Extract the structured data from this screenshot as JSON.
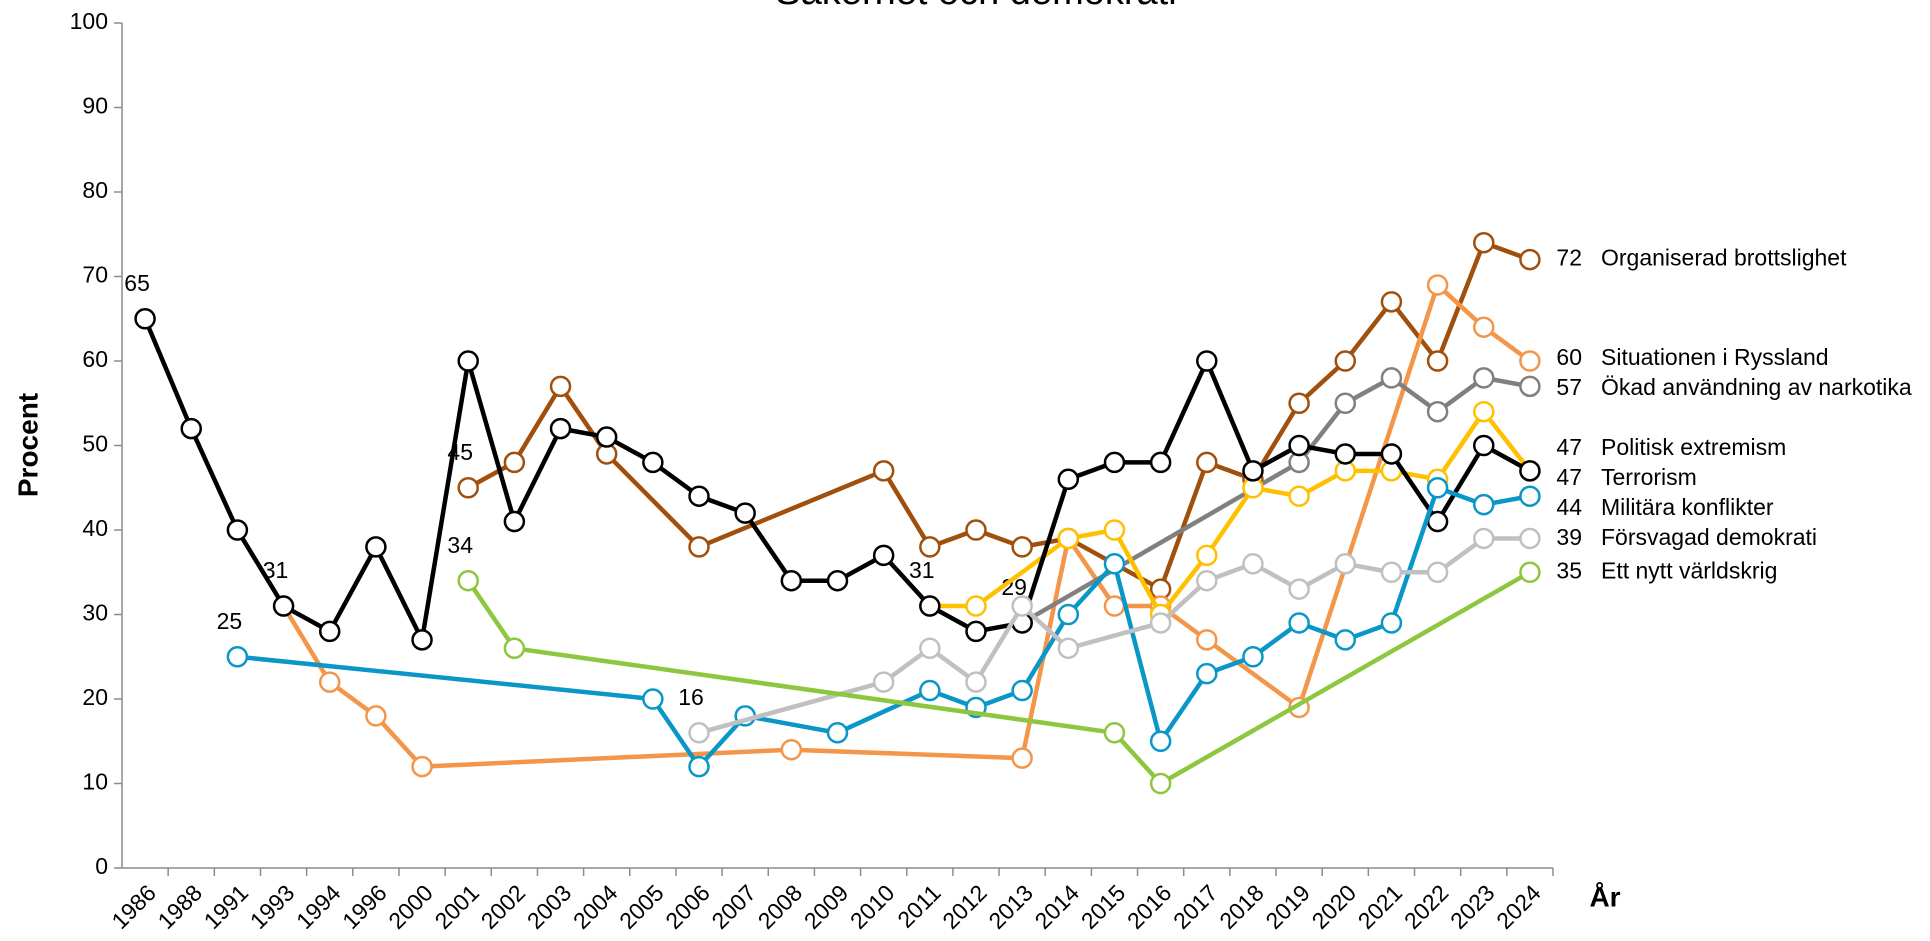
{
  "chart_data": {
    "type": "line",
    "title": "Säkerhet och demokrati",
    "x_label": "År",
    "y_label": "Procent",
    "categories": [
      "1986",
      "1988",
      "1991",
      "1993",
      "1994",
      "1996",
      "2000",
      "2001",
      "2002",
      "2003",
      "2004",
      "2005",
      "2006",
      "2007",
      "2008",
      "2009",
      "2010",
      "2011",
      "2012",
      "2013",
      "2014",
      "2015",
      "2016",
      "2017",
      "2018",
      "2019",
      "2020",
      "2021",
      "2022",
      "2023",
      "2024"
    ],
    "ylim": [
      0,
      100
    ],
    "yticks": [
      0,
      10,
      20,
      30,
      40,
      50,
      60,
      70,
      80,
      90,
      100
    ],
    "grid": false,
    "span_gaps": true,
    "data_labels": "first_and_last",
    "series": [
      {
        "name": "Organiserad brottslighet",
        "color": "#a0500c",
        "values": [
          null,
          null,
          null,
          null,
          null,
          null,
          null,
          45,
          48,
          57,
          49,
          null,
          38,
          null,
          null,
          null,
          47,
          38,
          40,
          38,
          39,
          null,
          33,
          48,
          46,
          55,
          60,
          67,
          60,
          74,
          72
        ]
      },
      {
        "name": "Situationen i Ryssland",
        "color": "#f4964a",
        "values": [
          null,
          null,
          null,
          31,
          22,
          18,
          12,
          null,
          null,
          null,
          null,
          null,
          null,
          null,
          14,
          null,
          null,
          null,
          null,
          13,
          39,
          31,
          31,
          27,
          null,
          19,
          null,
          null,
          69,
          64,
          60
        ]
      },
      {
        "name": "Ökad användning av narkotika",
        "color": "#808080",
        "values": [
          null,
          null,
          null,
          null,
          null,
          null,
          null,
          null,
          null,
          null,
          null,
          null,
          null,
          null,
          null,
          null,
          null,
          null,
          null,
          29,
          null,
          null,
          null,
          null,
          null,
          48,
          55,
          58,
          54,
          58,
          57
        ]
      },
      {
        "name": "Politisk extremism",
        "color": "#ffc000",
        "values": [
          null,
          null,
          null,
          null,
          null,
          null,
          null,
          null,
          null,
          null,
          null,
          null,
          null,
          null,
          null,
          null,
          null,
          31,
          31,
          null,
          39,
          40,
          30,
          37,
          45,
          44,
          47,
          47,
          46,
          54,
          47
        ]
      },
      {
        "name": "Terrorism",
        "color": "#000000",
        "values": [
          65,
          52,
          40,
          31,
          28,
          38,
          27,
          60,
          41,
          52,
          51,
          48,
          44,
          42,
          34,
          34,
          37,
          31,
          28,
          29,
          46,
          48,
          48,
          60,
          47,
          50,
          49,
          49,
          41,
          50,
          47
        ]
      },
      {
        "name": "Militära konflikter",
        "color": "#0a97c8",
        "values": [
          null,
          null,
          25,
          null,
          null,
          null,
          null,
          null,
          null,
          null,
          null,
          20,
          12,
          18,
          null,
          16,
          null,
          21,
          19,
          21,
          30,
          36,
          15,
          23,
          25,
          29,
          27,
          29,
          45,
          43,
          44
        ]
      },
      {
        "name": "Försvagad demokrati",
        "color": "#c0c0c0",
        "values": [
          null,
          null,
          null,
          null,
          null,
          null,
          null,
          null,
          null,
          null,
          null,
          null,
          16,
          null,
          null,
          null,
          22,
          26,
          22,
          31,
          26,
          null,
          29,
          34,
          36,
          33,
          36,
          35,
          35,
          39,
          39
        ]
      },
      {
        "name": "Ett nytt världskrig",
        "color": "#8dc63f",
        "values": [
          null,
          null,
          null,
          null,
          null,
          null,
          null,
          34,
          26,
          null,
          null,
          null,
          null,
          null,
          null,
          null,
          null,
          null,
          null,
          null,
          null,
          16,
          10,
          null,
          null,
          null,
          null,
          null,
          null,
          null,
          35
        ]
      }
    ]
  }
}
